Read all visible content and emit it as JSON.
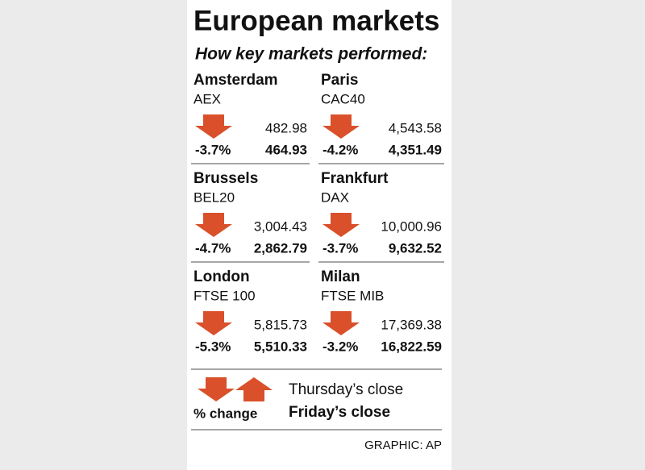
{
  "header": {
    "title": "European markets",
    "subtitle": "How key markets performed:"
  },
  "markets": [
    {
      "city": "Amsterdam",
      "index": "AEX",
      "change": "-3.7%",
      "previous": "482.98",
      "close": "464.93"
    },
    {
      "city": "Paris",
      "index": "CAC40",
      "change": "-4.2%",
      "previous": "4,543.58",
      "close": "4,351.49"
    },
    {
      "city": "Brussels",
      "index": "BEL20",
      "change": "-4.7%",
      "previous": "3,004.43",
      "close": "2,862.79"
    },
    {
      "city": "Frankfurt",
      "index": "DAX",
      "change": "-3.7%",
      "previous": "10,000.96",
      "close": "9,632.52"
    },
    {
      "city": "London",
      "index": "FTSE 100",
      "change": "-5.3%",
      "previous": "5,815.73",
      "close": "5,510.33"
    },
    {
      "city": "Milan",
      "index": "FTSE MIB",
      "change": "-3.2%",
      "previous": "17,369.38",
      "close": "16,822.59"
    }
  ],
  "legend": {
    "change": "% change",
    "previous": "Thursday’s close",
    "close": "Friday’s close"
  },
  "source": "GRAPHIC: AP"
}
